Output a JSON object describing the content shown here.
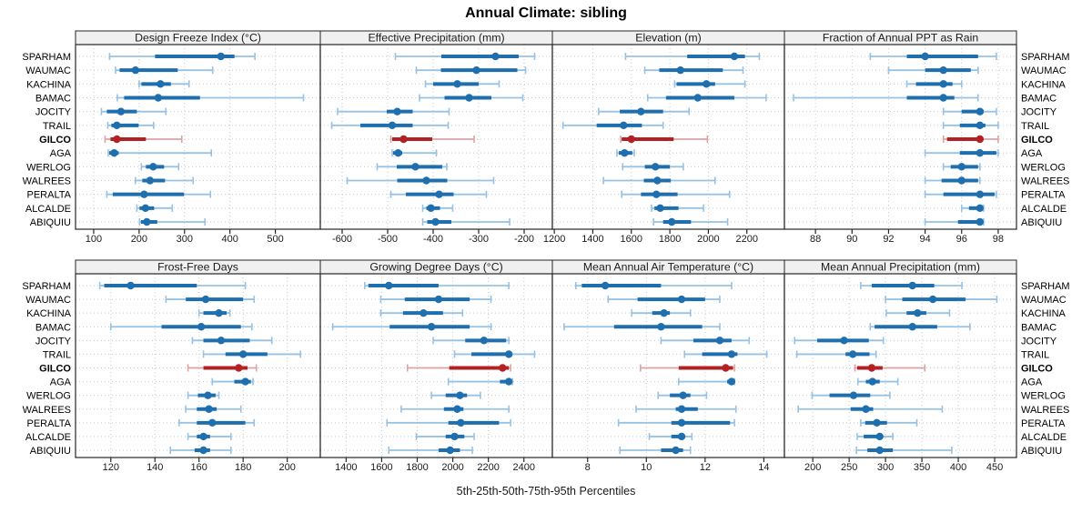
{
  "title": "Annual Climate: sibling",
  "footer": "5th-25th-50th-75th-95th Percentiles",
  "colors": {
    "normal": "#1f6fae",
    "normal_light": "#97c2e3",
    "highlight": "#b22225",
    "highlight_light": "#dda3a3",
    "header_bg": "#f0f0f0",
    "panel_border": "#262626",
    "grid": "#c9c9c9",
    "text": "#1a1a1a"
  },
  "chart_data": {
    "type": "percentile-range",
    "orientation": "horizontal",
    "percentile_levels": [
      5,
      25,
      50,
      75,
      95
    ],
    "stations": [
      "SPARHAM",
      "WAUMAC",
      "KACHINA",
      "BAMAC",
      "JOCITY",
      "TRAIL",
      "GILCO",
      "AGA",
      "WERLOG",
      "WALREES",
      "PERALTA",
      "ALCALDE",
      "ABIQUIU"
    ],
    "highlight_station": "GILCO",
    "panels": [
      {
        "title": "Design Freeze Index (°C)",
        "ticks": [
          100,
          200,
          300,
          400,
          500
        ],
        "xlim": [
          60,
          599
        ],
        "values": [
          [
            135,
            235,
            380,
            410,
            455
          ],
          [
            148,
            157,
            192,
            285,
            362
          ],
          [
            200,
            205,
            247,
            270,
            310
          ],
          [
            152,
            167,
            242,
            334,
            562
          ],
          [
            117,
            129,
            160,
            195,
            259
          ],
          [
            131,
            139,
            151,
            199,
            232
          ],
          [
            125,
            137,
            151,
            215,
            294
          ],
          [
            132,
            134,
            145,
            155,
            359
          ],
          [
            205,
            215,
            231,
            255,
            287
          ],
          [
            192,
            207,
            224,
            257,
            319
          ],
          [
            129,
            142,
            211,
            299,
            357
          ],
          [
            195,
            201,
            214,
            233,
            273
          ],
          [
            201,
            204,
            217,
            240,
            345
          ]
        ]
      },
      {
        "title": "Effective Precipitation (mm)",
        "ticks": [
          -600,
          -500,
          -400,
          -300,
          -200
        ],
        "xlim": [
          -648,
          -138
        ],
        "values": [
          [
            -483,
            -382,
            -263,
            -212,
            -177
          ],
          [
            -437,
            -383,
            -305,
            -215,
            -197
          ],
          [
            -417,
            -400,
            -347,
            -300,
            -255
          ],
          [
            -430,
            -375,
            -321,
            -272,
            -203
          ],
          [
            -610,
            -502,
            -479,
            -445,
            -365
          ],
          [
            -623,
            -560,
            -490,
            -445,
            -367
          ],
          [
            -493,
            -490,
            -465,
            -402,
            -310
          ],
          [
            -490,
            -488,
            -477,
            -468,
            -393
          ],
          [
            -523,
            -480,
            -439,
            -380,
            -370
          ],
          [
            -589,
            -479,
            -415,
            -369,
            -267
          ],
          [
            -493,
            -460,
            -387,
            -355,
            -283
          ],
          [
            -423,
            -415,
            -405,
            -385,
            -357
          ],
          [
            -423,
            -413,
            -395,
            -360,
            -232
          ]
        ]
      },
      {
        "title": "Elevation (m)",
        "ticks": [
          1200,
          1400,
          1600,
          1800,
          2000,
          2200
        ],
        "xlim": [
          1190,
          2395
        ],
        "values": [
          [
            1570,
            1890,
            2135,
            2190,
            2265
          ],
          [
            1670,
            1745,
            1855,
            2075,
            2180
          ],
          [
            1825,
            1835,
            1990,
            2035,
            2190
          ],
          [
            1685,
            1780,
            1945,
            2135,
            2300
          ],
          [
            1430,
            1540,
            1650,
            1765,
            1900
          ],
          [
            1245,
            1420,
            1560,
            1655,
            1765
          ],
          [
            1545,
            1550,
            1600,
            1820,
            1995
          ],
          [
            1525,
            1535,
            1565,
            1605,
            1615
          ],
          [
            1555,
            1670,
            1725,
            1800,
            1870
          ],
          [
            1455,
            1665,
            1735,
            1805,
            2035
          ],
          [
            1550,
            1650,
            1730,
            1840,
            2110
          ],
          [
            1705,
            1720,
            1750,
            1845,
            1975
          ],
          [
            1715,
            1765,
            1810,
            1910,
            2100
          ]
        ]
      },
      {
        "title": "Fraction of Annual PPT as Rain",
        "ticks": [
          88,
          90,
          92,
          94,
          96,
          98
        ],
        "xlim": [
          86.3,
          99.0
        ],
        "values": [
          [
            91,
            93,
            94,
            96.9,
            97.9
          ],
          [
            92,
            94,
            95,
            96.5,
            96.9
          ],
          [
            93,
            93.5,
            95,
            95.5,
            96
          ],
          [
            86.8,
            93,
            95,
            95.6,
            96.9
          ],
          [
            95,
            96,
            97,
            97.2,
            97.9
          ],
          [
            95,
            95.9,
            97,
            97.3,
            98
          ],
          [
            95,
            95.2,
            97,
            97.1,
            98
          ],
          [
            94,
            95.9,
            97,
            97.9,
            98
          ],
          [
            95,
            95.4,
            96,
            96.9,
            97
          ],
          [
            94,
            94.9,
            96,
            96.9,
            97
          ],
          [
            94,
            95,
            97,
            97.8,
            97.9
          ],
          [
            96,
            96.4,
            97,
            97.1,
            97.2
          ],
          [
            94,
            95.8,
            97,
            97.1,
            97.2
          ]
        ]
      },
      {
        "title": "Frost-Free Days",
        "ticks": [
          120,
          140,
          160,
          180,
          200
        ],
        "xlim": [
          104,
          215
        ],
        "values": [
          [
            115,
            117,
            129,
            159,
            181
          ],
          [
            145,
            154,
            163,
            180,
            185
          ],
          [
            160,
            162,
            169,
            172.5,
            174
          ],
          [
            120,
            143,
            161,
            179,
            184
          ],
          [
            157,
            162,
            170,
            183,
            193
          ],
          [
            162,
            172,
            180,
            191,
            206
          ],
          [
            155,
            162,
            178,
            182,
            186
          ],
          [
            166,
            176,
            181,
            183.5,
            184.5
          ],
          [
            155,
            159.5,
            164,
            167.5,
            169
          ],
          [
            154,
            159,
            164.5,
            168,
            179
          ],
          [
            151,
            159,
            166,
            181,
            185
          ],
          [
            155,
            159,
            162,
            165,
            174.5
          ],
          [
            147,
            158,
            162,
            165,
            174.5
          ]
        ]
      },
      {
        "title": "Growing Degree Days (°C)",
        "ticks": [
          1400,
          1600,
          1800,
          2000,
          2200,
          2400
        ],
        "xlim": [
          1255,
          2560
        ],
        "values": [
          [
            1505,
            1525,
            1640,
            1920,
            2315
          ],
          [
            1595,
            1730,
            1920,
            2095,
            2215
          ],
          [
            1595,
            1720,
            1835,
            1945,
            2055
          ],
          [
            1325,
            1645,
            1880,
            2095,
            2215
          ],
          [
            1890,
            2070,
            2175,
            2300,
            2315
          ],
          [
            2010,
            2105,
            2315,
            2335,
            2460
          ],
          [
            1745,
            1980,
            2280,
            2315,
            2325
          ],
          [
            1975,
            2265,
            2315,
            2330,
            2335
          ],
          [
            1880,
            1960,
            2040,
            2080,
            2155
          ],
          [
            1710,
            1950,
            2025,
            2060,
            2315
          ],
          [
            1630,
            1975,
            2045,
            2260,
            2325
          ],
          [
            1795,
            1960,
            2010,
            2065,
            2120
          ],
          [
            1640,
            1920,
            1985,
            2040,
            2110
          ]
        ]
      },
      {
        "title": "Mean Annual Air Temperature (°C)",
        "ticks": [
          8,
          10,
          12,
          14
        ],
        "xlim": [
          6.8,
          14.7
        ],
        "values": [
          [
            7.6,
            7.8,
            8.6,
            10.5,
            12.9
          ],
          [
            8.7,
            9.7,
            11.2,
            12,
            12.5
          ],
          [
            9.5,
            10.2,
            10.6,
            10.8,
            11.5
          ],
          [
            7.2,
            8.9,
            10.5,
            11.9,
            12.5
          ],
          [
            10.5,
            11.6,
            12.5,
            12.9,
            13.5
          ],
          [
            11.3,
            11.9,
            12.9,
            13.1,
            14.1
          ],
          [
            9.8,
            11.1,
            12.7,
            12.95,
            13
          ],
          [
            11.1,
            12.75,
            12.9,
            12.95,
            13
          ],
          [
            10.4,
            10.8,
            11.25,
            11.5,
            12.05
          ],
          [
            9.65,
            11,
            11.2,
            11.75,
            13.05
          ],
          [
            9.05,
            10.85,
            11.2,
            12.85,
            13
          ],
          [
            10.1,
            10.85,
            11.2,
            11.3,
            11.55
          ],
          [
            9.1,
            10.5,
            11,
            11.25,
            11.5
          ]
        ]
      },
      {
        "title": "Mean Annual Precipitation (mm)",
        "ticks": [
          200,
          250,
          300,
          350,
          400,
          450
        ],
        "xlim": [
          161,
          480
        ],
        "values": [
          [
            266,
            281,
            337,
            367,
            405
          ],
          [
            300,
            323,
            365,
            410,
            453
          ],
          [
            301,
            329,
            344,
            356,
            388
          ],
          [
            279,
            285,
            337,
            371,
            416
          ],
          [
            175,
            206,
            243,
            277,
            297
          ],
          [
            178,
            245,
            255,
            278,
            287
          ],
          [
            258,
            261,
            281,
            296,
            354
          ],
          [
            262,
            273,
            282,
            292,
            317
          ],
          [
            199,
            223,
            256,
            279,
            306
          ],
          [
            180,
            252,
            273,
            283,
            378
          ],
          [
            266,
            272,
            288,
            302,
            343
          ],
          [
            261,
            270,
            292,
            296,
            310
          ],
          [
            260,
            275,
            292,
            310,
            391
          ]
        ]
      }
    ]
  }
}
